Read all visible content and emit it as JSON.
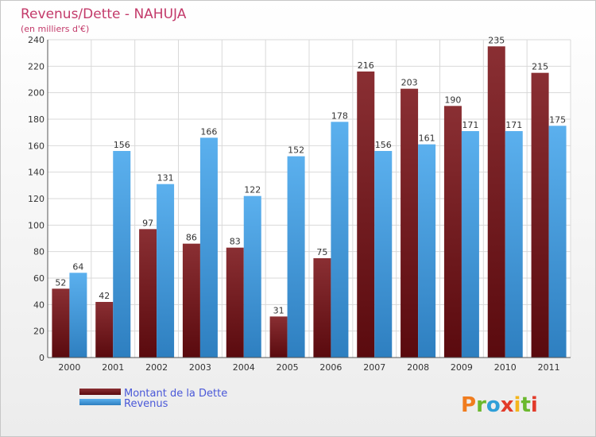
{
  "chart_data": {
    "type": "bar",
    "title": "Revenus/Dette - NAHUJA",
    "subtitle": "(en milliers d'€)",
    "categories": [
      "2000",
      "2001",
      "2002",
      "2003",
      "2004",
      "2005",
      "2006",
      "2007",
      "2008",
      "2009",
      "2010",
      "2011"
    ],
    "series": [
      {
        "name": "Montant de la Dette",
        "color": "#7a1f24",
        "values": [
          52,
          42,
          97,
          86,
          83,
          31,
          75,
          216,
          203,
          190,
          235,
          215
        ]
      },
      {
        "name": "Revenus",
        "color": "#4ea3e6",
        "values": [
          64,
          156,
          131,
          166,
          122,
          152,
          178,
          156,
          161,
          171,
          171,
          175
        ]
      }
    ],
    "ylim": [
      0,
      240
    ],
    "yticks": [
      0,
      20,
      40,
      60,
      80,
      100,
      120,
      140,
      160,
      180,
      200,
      220,
      240
    ],
    "grid": true,
    "legend_position": "bottom-left"
  },
  "logo": {
    "letters": [
      "P",
      "r",
      "o",
      "x",
      "i",
      "t",
      "i"
    ],
    "colors": [
      "#f07c1e",
      "#6bb82e",
      "#2f9fd8",
      "#e23b2a",
      "#f4b51c",
      "#6bb82e",
      "#e23b2a"
    ]
  }
}
